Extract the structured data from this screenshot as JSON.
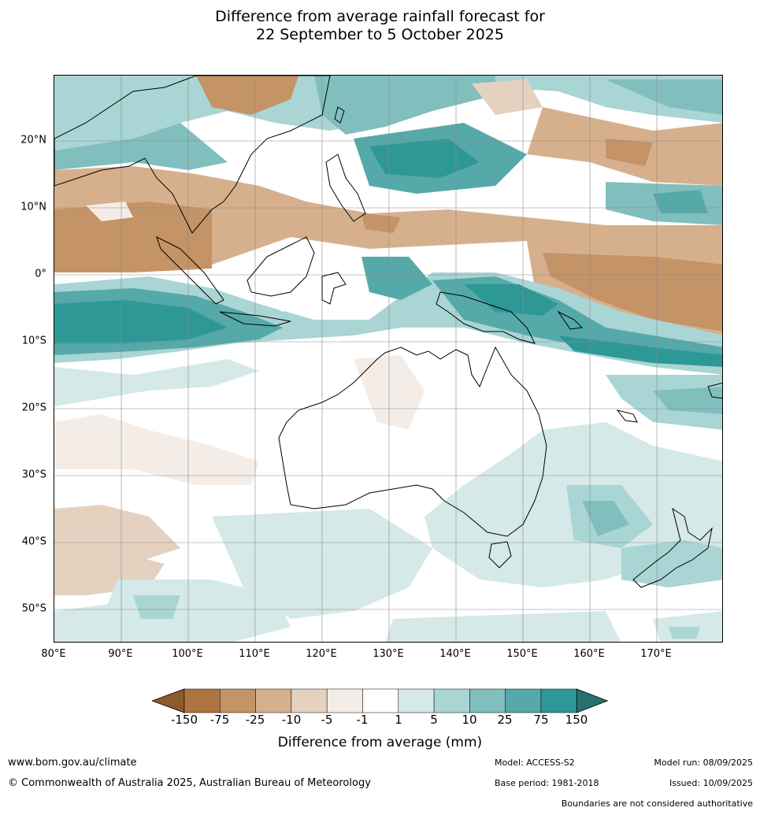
{
  "title": {
    "line1": "Difference from average rainfall forecast for",
    "line2": "22 September to 5 October 2025"
  },
  "map": {
    "lat_labels": [
      "20°N",
      "10°N",
      "0°",
      "10°S",
      "20°S",
      "30°S",
      "40°S",
      "50°S"
    ],
    "lon_labels": [
      "80°E",
      "90°E",
      "100°E",
      "110°E",
      "120°E",
      "130°E",
      "140°E",
      "150°E",
      "160°E",
      "170°E"
    ]
  },
  "legend": {
    "title": "Difference from average (mm)",
    "ticks": [
      "-150",
      "-75",
      "-25",
      "-10",
      "-5",
      "-1",
      "1",
      "5",
      "10",
      "25",
      "75",
      "150"
    ],
    "colors": [
      "#8c5a2c",
      "#ad7440",
      "#c49366",
      "#d6b08d",
      "#e4d1c0",
      "#f4ede7",
      "#ffffff",
      "#d4e9e8",
      "#a9d5d4",
      "#80bfbe",
      "#56a9a9",
      "#2e9896",
      "#247270"
    ]
  },
  "footer": {
    "url": "www.bom.gov.au/climate",
    "copyright": "© Commonwealth of Australia 2025, Australian Bureau of Meteorology",
    "model": "Model: ACCESS-S2",
    "base_period": "Base period: 1981-2018",
    "model_run": "Model run: 08/09/2025",
    "issued": "Issued: 10/09/2025",
    "boundaries": "Boundaries are not considered authoritative"
  }
}
